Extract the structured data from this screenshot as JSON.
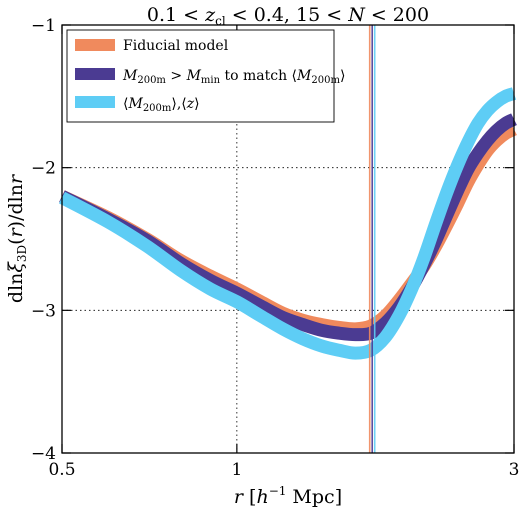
{
  "chart_data": {
    "type": "line",
    "title": "0.1 < z_cl < 0.4, 15 < N < 200",
    "xlabel": "r [h⁻¹ Mpc]",
    "ylabel": "dln ξ_3D(r) / dln r",
    "xscale": "log",
    "xlim": [
      0.5,
      3.0
    ],
    "ylim": [
      -4.0,
      -1.0
    ],
    "xticks": [
      0.5,
      1,
      3
    ],
    "xtick_labels": [
      "0.5",
      "1",
      "3"
    ],
    "yticks": [
      -4,
      -3,
      -2,
      -1
    ],
    "ytick_labels": [
      "−4",
      "−3",
      "−2",
      "−1"
    ],
    "grid": "dotted",
    "legend_position": "top-left",
    "vertical_lines": {
      "x": 1.71,
      "colors": [
        "#f08a5d",
        "#4b3b92",
        "#5ecdf5"
      ]
    },
    "series": [
      {
        "name": "Fiducial model",
        "color": "#f08a5d",
        "x": [
          0.5,
          0.6,
          0.7,
          0.8,
          0.9,
          1.0,
          1.1,
          1.2,
          1.3,
          1.4,
          1.5,
          1.6,
          1.7,
          1.8,
          1.9,
          2.0,
          2.1,
          2.2,
          2.3,
          2.4,
          2.5,
          2.6,
          2.7,
          2.8,
          2.9,
          3.0
        ],
        "y": [
          -2.2,
          -2.35,
          -2.5,
          -2.65,
          -2.76,
          -2.85,
          -2.94,
          -3.02,
          -3.07,
          -3.1,
          -3.12,
          -3.13,
          -3.11,
          -3.04,
          -2.93,
          -2.81,
          -2.69,
          -2.55,
          -2.4,
          -2.25,
          -2.1,
          -1.98,
          -1.88,
          -1.81,
          -1.76,
          -1.73
        ]
      },
      {
        "name": "M_200m > M_min to match ⟨M_200m⟩",
        "color": "#4b3b92",
        "x": [
          0.5,
          0.6,
          0.7,
          0.8,
          0.9,
          1.0,
          1.1,
          1.2,
          1.3,
          1.4,
          1.5,
          1.6,
          1.7,
          1.8,
          1.9,
          2.0,
          2.1,
          2.2,
          2.3,
          2.4,
          2.5,
          2.6,
          2.7,
          2.8,
          2.9,
          3.0
        ],
        "y": [
          -2.2,
          -2.36,
          -2.51,
          -2.67,
          -2.79,
          -2.88,
          -2.97,
          -3.05,
          -3.1,
          -3.14,
          -3.16,
          -3.17,
          -3.16,
          -3.09,
          -2.98,
          -2.84,
          -2.68,
          -2.51,
          -2.33,
          -2.16,
          -2.01,
          -1.9,
          -1.81,
          -1.74,
          -1.69,
          -1.66
        ]
      },
      {
        "name": "⟨M_200m⟩, ⟨z⟩",
        "color": "#5ecdf5",
        "x": [
          0.5,
          0.6,
          0.7,
          0.8,
          0.9,
          1.0,
          1.1,
          1.2,
          1.3,
          1.4,
          1.5,
          1.6,
          1.7,
          1.8,
          1.9,
          2.0,
          2.1,
          2.2,
          2.3,
          2.4,
          2.5,
          2.6,
          2.7,
          2.8,
          2.9,
          3.0
        ],
        "y": [
          -2.21,
          -2.38,
          -2.55,
          -2.72,
          -2.85,
          -2.94,
          -3.04,
          -3.13,
          -3.2,
          -3.25,
          -3.28,
          -3.3,
          -3.28,
          -3.19,
          -3.04,
          -2.85,
          -2.63,
          -2.39,
          -2.17,
          -1.98,
          -1.82,
          -1.69,
          -1.6,
          -1.54,
          -1.5,
          -1.48
        ]
      }
    ]
  }
}
